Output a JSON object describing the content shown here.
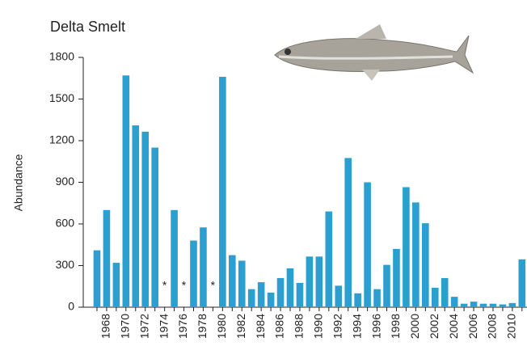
{
  "chart_data": {
    "type": "bar",
    "title": "Delta Smelt",
    "y_label": "Abundance",
    "categories": [
      null,
      "1968",
      null,
      "1970",
      null,
      "1972",
      null,
      "1974",
      null,
      "1976",
      null,
      "1978",
      null,
      "1980",
      null,
      "1982",
      null,
      "1984",
      null,
      "1986",
      null,
      "1988",
      null,
      "1990",
      null,
      "1992",
      null,
      "1994",
      null,
      "1996",
      null,
      "1998",
      null,
      "2000",
      null,
      "2002",
      null,
      "2004",
      null,
      "2006",
      null,
      "2008",
      null,
      "2010",
      null
    ],
    "values": [
      410,
      700,
      320,
      1670,
      1310,
      1265,
      1150,
      null,
      700,
      null,
      480,
      575,
      null,
      1660,
      375,
      335,
      130,
      180,
      105,
      210,
      280,
      175,
      365,
      365,
      690,
      155,
      1075,
      100,
      900,
      130,
      305,
      420,
      865,
      755,
      605,
      140,
      210,
      75,
      25,
      40,
      25,
      25,
      20,
      30,
      345
    ],
    "value_labels": [
      null,
      null,
      null,
      null,
      null,
      null,
      null,
      "*",
      null,
      "*",
      null,
      null,
      "*",
      null,
      null,
      null,
      null,
      null,
      null,
      null,
      null,
      null,
      null,
      null,
      null,
      null,
      null,
      null,
      null,
      null,
      null,
      null,
      null,
      null,
      null,
      null,
      null,
      null,
      null,
      null,
      null,
      null,
      null,
      null,
      null
    ],
    "color": "#2a9fd0",
    "ylim": [
      0,
      1800
    ],
    "yticks": [
      0,
      300,
      600,
      900,
      1200,
      1500,
      1800
    ]
  }
}
